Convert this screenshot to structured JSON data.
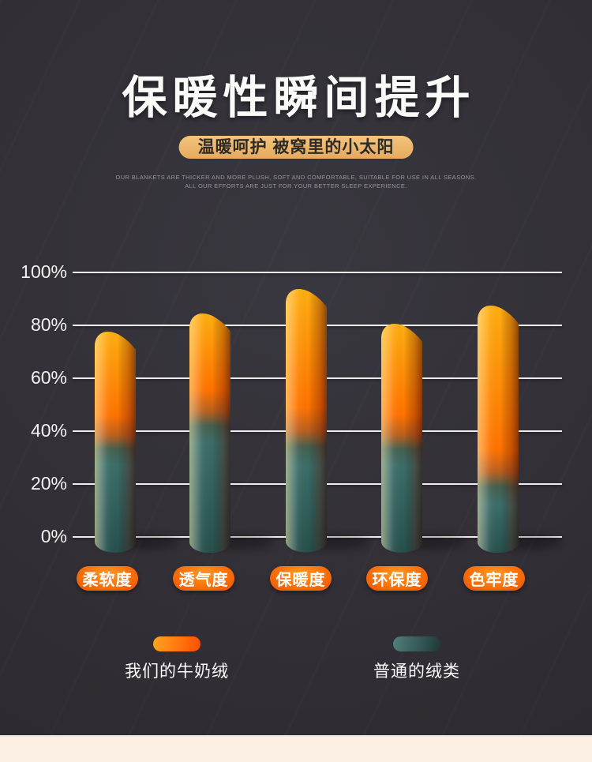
{
  "header": {
    "title": "保暖性瞬间提升",
    "subtitle": "温暖呵护 被窝里的小太阳",
    "tagline_line1": "OUR BLANKETS ARE THICKER AND MORE PLUSH, SOFT AND COMFORTABLE, SUITABLE FOR USE IN ALL SEASONS.",
    "tagline_line2": "ALL OUR EFFORTS ARE JUST FOR YOUR BETTER SLEEP EXPERIENCE."
  },
  "chart_data": {
    "type": "bar",
    "title": "保暖性瞬间提升",
    "categories": [
      "柔软度",
      "透气度",
      "保暖度",
      "环保度",
      "色牢度"
    ],
    "series": [
      {
        "name": "我们的牛奶绒",
        "values": [
          77,
          84,
          93,
          80,
          87
        ],
        "color": "#FF7300"
      },
      {
        "name": "普通的绒类",
        "values": [
          35,
          44,
          36,
          35,
          21
        ],
        "color": "#2F5A57"
      }
    ],
    "y_ticks": [
      "100%",
      "80%",
      "60%",
      "40%",
      "20%",
      "0%"
    ],
    "ylim": [
      0,
      100
    ],
    "grid": true,
    "legend_position": "bottom",
    "bar_style": "gradient-cylinder"
  },
  "colors": {
    "background": "#312E36",
    "accent_orange": "#FF6A00",
    "deep_orange": "#F04A00",
    "accent_teal": "#2F5A57",
    "badge_gold": "#EBB269",
    "footer_cream": "#FCF0E5",
    "text_white": "#FAFAF8"
  }
}
